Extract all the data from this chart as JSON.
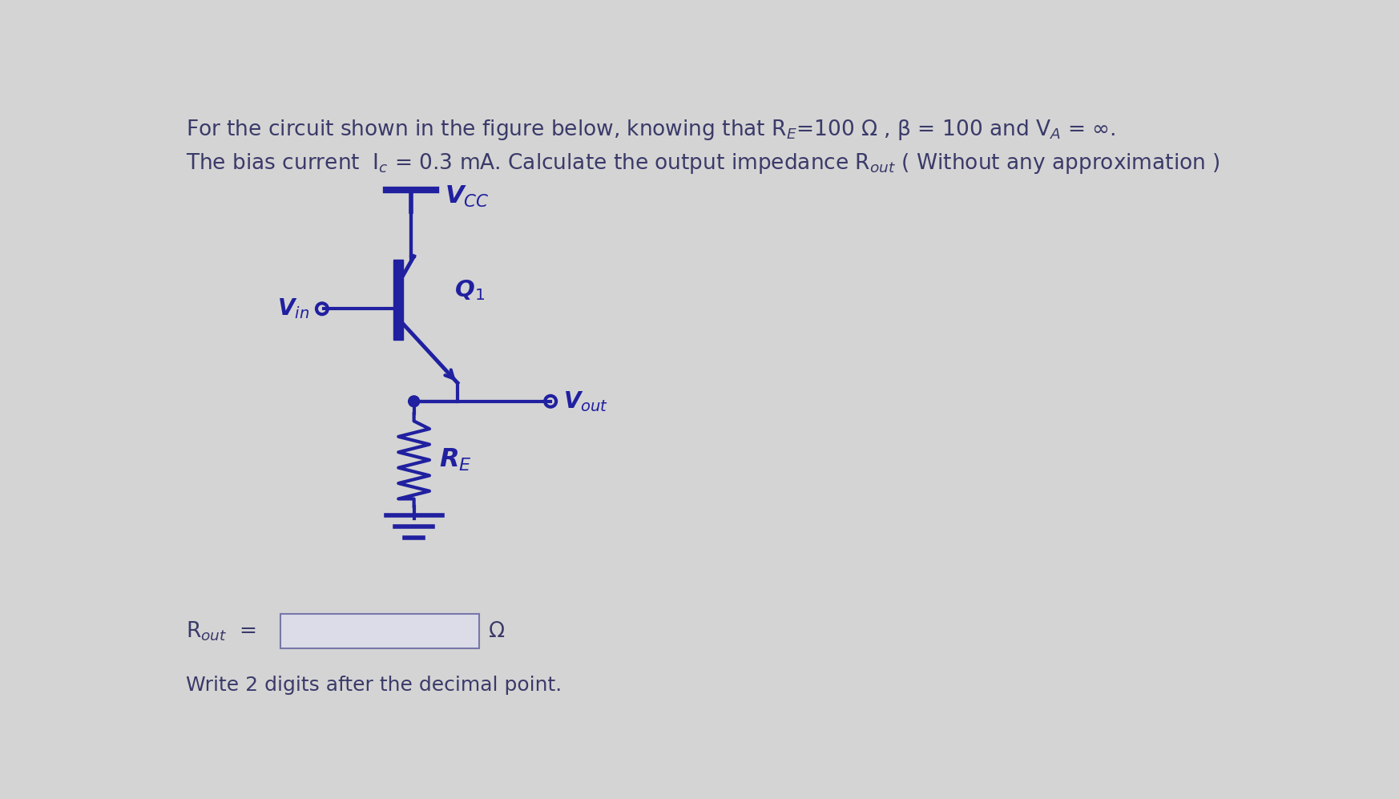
{
  "bg_color": "#d4d4d4",
  "text_color": "#3a3a6a",
  "circuit_color": "#2020a0",
  "line1_text": "For the circuit shown in the figure below, knowing that R$_{E}$=100 Ω , β = 100 and V$_{A}$ = ∞.",
  "line2_text": "The bias current  I$_{c}$ = 0.3 mA. Calculate the output impedance R$_{out}$ ( Without any approximation )",
  "vcc_text": "V$_{CC}$",
  "vin_text": "V$_{in}$",
  "q1_text": "Q$_{1}$",
  "vout_text": "V$_{out}$",
  "re_text": "R$_{E}$",
  "rout_label": "R$_{out}$",
  "ohm": "Ω",
  "footer": "Write 2 digits after the decimal point.",
  "font_size_text": 19,
  "font_size_circuit": 20,
  "lw": 3.0
}
